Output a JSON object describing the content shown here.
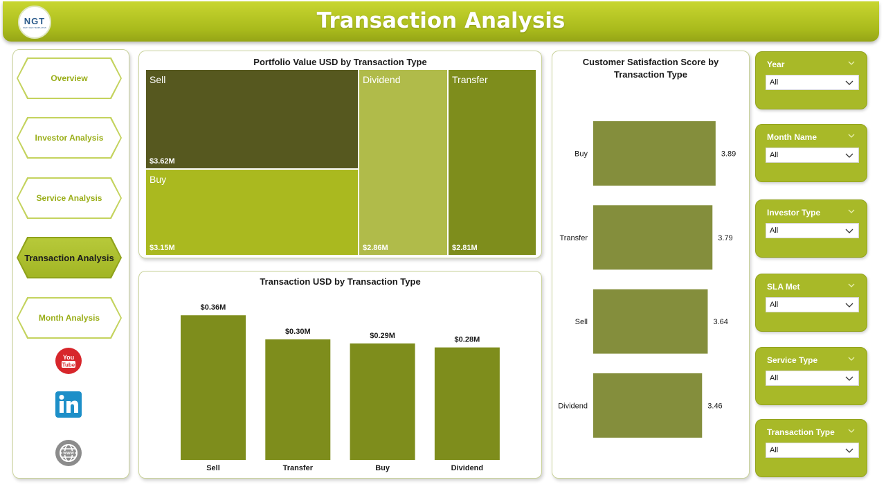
{
  "header": {
    "title": "Transaction Analysis",
    "logo_text": "NGT",
    "logo_tagline": "NEXT GEN TEMPLATES"
  },
  "nav": {
    "items": [
      {
        "label": "Overview",
        "active": false
      },
      {
        "label": "Investor Analysis",
        "active": false
      },
      {
        "label": "Service Analysis",
        "active": false
      },
      {
        "label": "Transaction Analysis",
        "active": true
      },
      {
        "label": "Month Analysis",
        "active": false
      }
    ],
    "social": [
      "youtube-icon",
      "linkedin-icon",
      "globe-icon"
    ]
  },
  "treemap": {
    "title": "Portfolio Value USD by Transaction Type",
    "tiles": [
      {
        "label": "Sell",
        "value": "$3.62M",
        "color": "#56581f"
      },
      {
        "label": "Buy",
        "value": "$3.15M",
        "color": "#aab91f"
      },
      {
        "label": "Dividend",
        "value": "$2.86M",
        "color": "#b0bb4a"
      },
      {
        "label": "Transfer",
        "value": "$2.81M",
        "color": "#7e8d1c"
      }
    ]
  },
  "bar_chart": {
    "title": "Transaction USD by Transaction Type",
    "color": "#7e8d1c"
  },
  "satisfaction": {
    "title_line1": "Customer Satisfaction Score by",
    "title_line2": "Transaction Type",
    "color": "#848e3c"
  },
  "slicers": [
    {
      "label": "Year",
      "value": "All"
    },
    {
      "label": "Month Name",
      "value": "All"
    },
    {
      "label": "Investor Type",
      "value": "All"
    },
    {
      "label": "SLA Met",
      "value": "All"
    },
    {
      "label": "Service Type",
      "value": "All"
    },
    {
      "label": "Transaction Type",
      "value": "All"
    }
  ],
  "chart_data": [
    {
      "type": "treemap",
      "title": "Portfolio Value USD by Transaction Type",
      "categories": [
        "Sell",
        "Buy",
        "Dividend",
        "Transfer"
      ],
      "values": [
        3.62,
        3.15,
        2.86,
        2.81
      ],
      "value_labels": [
        "$3.62M",
        "$3.15M",
        "$2.86M",
        "$2.81M"
      ]
    },
    {
      "type": "bar",
      "title": "Transaction USD by Transaction Type",
      "categories": [
        "Sell",
        "Transfer",
        "Buy",
        "Dividend"
      ],
      "values": [
        0.36,
        0.3,
        0.29,
        0.28
      ],
      "value_labels": [
        "$0.36M",
        "$0.30M",
        "$0.29M",
        "$0.28M"
      ],
      "ylim": [
        0,
        0.4
      ]
    },
    {
      "type": "bar",
      "orientation": "horizontal",
      "title": "Customer Satisfaction Score by Transaction Type",
      "categories": [
        "Buy",
        "Transfer",
        "Sell",
        "Dividend"
      ],
      "values": [
        3.89,
        3.79,
        3.64,
        3.46
      ],
      "value_labels": [
        "3.89",
        "3.79",
        "3.64",
        "3.46"
      ],
      "xlim": [
        0,
        4.4
      ]
    }
  ]
}
